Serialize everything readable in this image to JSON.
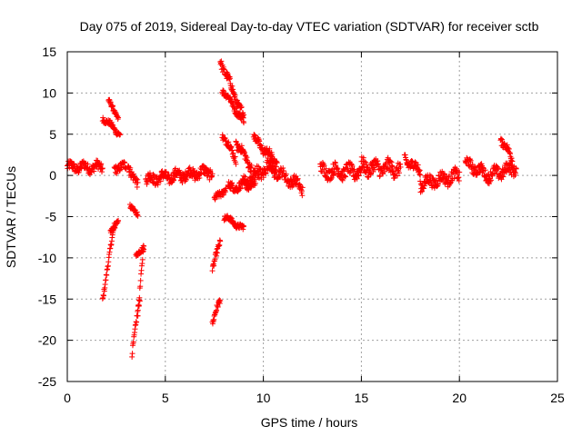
{
  "chart_data": {
    "type": "scatter",
    "title": "Day 075 of 2019, Sidereal Day-to-day VTEC variation (SDTVAR) for receiver sctb",
    "xlabel": "GPS time / hours",
    "ylabel": "SDTVAR / TECUs",
    "xlim": [
      0,
      25
    ],
    "ylim": [
      -25,
      15
    ],
    "xticks": [
      0,
      5,
      10,
      15,
      20,
      25
    ],
    "yticks": [
      -25,
      -20,
      -15,
      -10,
      -5,
      0,
      5,
      10,
      15
    ],
    "grid": true,
    "marker": "+",
    "color": "#ff0000",
    "series": [
      {
        "name": "SDTVAR",
        "segments": [
          {
            "x": [
              0.0,
              1.8
            ],
            "y": [
              1.0,
              1.0
            ],
            "noise": 0.9
          },
          {
            "x": [
              1.8,
              2.4
            ],
            "y": [
              -15.0,
              -6.0
            ],
            "noise": 0.5
          },
          {
            "x": [
              2.2,
              2.6
            ],
            "y": [
              -7.0,
              -5.3
            ],
            "noise": 0.5
          },
          {
            "x": [
              1.8,
              2.7
            ],
            "y": [
              7.0,
              5.0
            ],
            "noise": 0.5
          },
          {
            "x": [
              2.1,
              2.6
            ],
            "y": [
              9.0,
              7.0
            ],
            "noise": 0.4
          },
          {
            "x": [
              2.4,
              3.0
            ],
            "y": [
              1.0,
              1.0
            ],
            "noise": 0.8
          },
          {
            "x": [
              3.1,
              3.6
            ],
            "y": [
              1.5,
              -1.5
            ],
            "noise": 0.9
          },
          {
            "x": [
              3.2,
              3.6
            ],
            "y": [
              -3.5,
              -5.0
            ],
            "noise": 0.5
          },
          {
            "x": [
              3.3,
              3.7
            ],
            "y": [
              -21.5,
              -15.0
            ],
            "noise": 0.6
          },
          {
            "x": [
              3.6,
              3.9
            ],
            "y": [
              -17.0,
              -8.0
            ],
            "noise": 0.6
          },
          {
            "x": [
              3.5,
              3.9
            ],
            "y": [
              -10.0,
              -8.5
            ],
            "noise": 0.5
          },
          {
            "x": [
              4.0,
              7.4
            ],
            "y": [
              -0.5,
              0.5
            ],
            "noise": 1.0
          },
          {
            "x": [
              7.4,
              7.8
            ],
            "y": [
              -18.0,
              -15.0
            ],
            "noise": 0.6
          },
          {
            "x": [
              7.4,
              7.8
            ],
            "y": [
              -11.5,
              -8.0
            ],
            "noise": 0.6
          },
          {
            "x": [
              7.5,
              8.1
            ],
            "y": [
              -3.0,
              -1.5
            ],
            "noise": 0.6
          },
          {
            "x": [
              7.8,
              9.0
            ],
            "y": [
              14.0,
              7.0
            ],
            "noise": 0.8
          },
          {
            "x": [
              7.9,
              9.0
            ],
            "y": [
              10.5,
              6.5
            ],
            "noise": 0.6
          },
          {
            "x": [
              7.9,
              8.6
            ],
            "y": [
              5.0,
              2.0
            ],
            "noise": 0.7
          },
          {
            "x": [
              8.0,
              9.0
            ],
            "y": [
              -5.0,
              -6.5
            ],
            "noise": 0.5
          },
          {
            "x": [
              8.2,
              9.6
            ],
            "y": [
              -1.5,
              -1.0
            ],
            "noise": 0.8
          },
          {
            "x": [
              8.6,
              9.4
            ],
            "y": [
              4.0,
              1.0
            ],
            "noise": 0.8
          },
          {
            "x": [
              9.0,
              10.5
            ],
            "y": [
              -1.0,
              1.5
            ],
            "noise": 1.2
          },
          {
            "x": [
              9.5,
              10.7
            ],
            "y": [
              4.5,
              1.5
            ],
            "noise": 0.8
          },
          {
            "x": [
              10.3,
              12.0
            ],
            "y": [
              1.0,
              -1.5
            ],
            "noise": 1.0
          },
          {
            "x": [
              12.9,
              15.0
            ],
            "y": [
              0.5,
              0.5
            ],
            "noise": 1.2
          },
          {
            "x": [
              15.0,
              17.0
            ],
            "y": [
              1.0,
              0.8
            ],
            "noise": 1.3
          },
          {
            "x": [
              17.2,
              18.0
            ],
            "y": [
              2.0,
              0.5
            ],
            "noise": 1.0
          },
          {
            "x": [
              18.0,
              20.0
            ],
            "y": [
              -1.0,
              0.0
            ],
            "noise": 1.1
          },
          {
            "x": [
              20.3,
              21.5
            ],
            "y": [
              1.5,
              0.0
            ],
            "noise": 1.0
          },
          {
            "x": [
              21.5,
              22.9
            ],
            "y": [
              0.0,
              1.0
            ],
            "noise": 1.1
          },
          {
            "x": [
              22.1,
              22.7
            ],
            "y": [
              4.5,
              2.0
            ],
            "noise": 0.7
          }
        ]
      }
    ]
  }
}
